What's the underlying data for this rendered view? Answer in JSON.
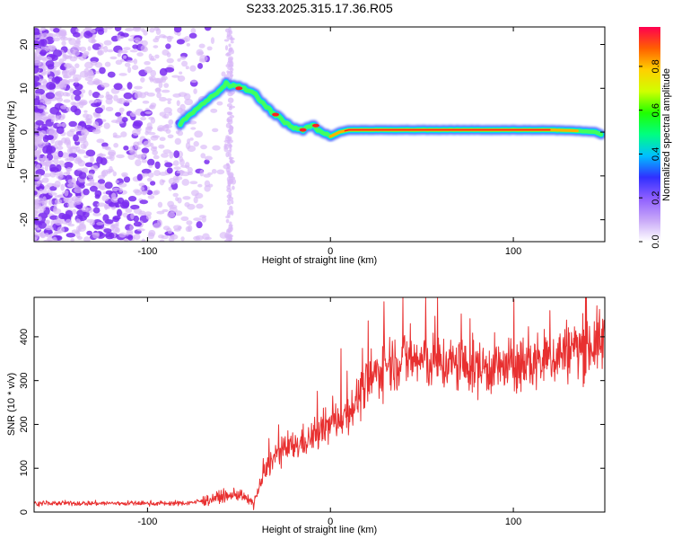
{
  "title": "S233.2025.315.17.36.R05",
  "colors": {
    "snr_line": "#e83030",
    "ridge_core": "#ff2020",
    "ridge_outer": "#4060ff",
    "noise_dark": "#7a2cf0",
    "noise_light": "#d8b8f8"
  },
  "colorbar": {
    "label": "Normalized spectral amplitude",
    "ticks": [
      {
        "value": 0.0,
        "label": "0.0"
      },
      {
        "value": 0.2,
        "label": "0.2"
      },
      {
        "value": 0.4,
        "label": "0.4"
      },
      {
        "value": 0.6,
        "label": "0.6"
      },
      {
        "value": 0.8,
        "label": "0.8"
      }
    ],
    "stops": [
      "#ffffff",
      "#c8a8f8",
      "#9060ff",
      "#3030ff",
      "#00c0ff",
      "#00ff80",
      "#20ff00",
      "#d0ff00",
      "#ffd000",
      "#ff6000",
      "#ff0050"
    ]
  },
  "chart_data": [
    {
      "type": "heatmap",
      "xlabel": "Height of straight line (km)",
      "ylabel": "Frequency (Hz)",
      "xlim": [
        -162,
        150
      ],
      "ylim": [
        -25,
        24
      ],
      "x_ticks": [
        {
          "value": -100,
          "label": "-100"
        },
        {
          "value": 0,
          "label": "0"
        },
        {
          "value": 100,
          "label": "100"
        }
      ],
      "y_ticks": [
        {
          "value": -20,
          "label": "-20"
        },
        {
          "value": -10,
          "label": "-10"
        },
        {
          "value": 0,
          "label": "0"
        },
        {
          "value": 10,
          "label": "10"
        },
        {
          "value": 20,
          "label": "20"
        }
      ],
      "ridge": {
        "x": [
          -82,
          -75,
          -68,
          -62,
          -57,
          -53,
          -47,
          -42,
          -38,
          -33,
          -28,
          -24,
          -20,
          -15,
          -10,
          -5,
          0,
          5,
          10,
          20,
          40,
          60,
          80,
          100,
          120,
          135,
          145,
          148
        ],
        "y": [
          2,
          4.5,
          7,
          9,
          11,
          10.5,
          10,
          9,
          7,
          5,
          3.5,
          2,
          1,
          0.5,
          1.5,
          0,
          -1,
          0,
          0.5,
          0.5,
          0.5,
          0.5,
          0.5,
          0.5,
          0.5,
          0.3,
          0,
          -0.5
        ]
      }
    },
    {
      "type": "line",
      "xlabel": "Height of straight line (km)",
      "ylabel": "SNR (10 * v/v)",
      "xlim": [
        -162,
        150
      ],
      "ylim": [
        0,
        490
      ],
      "x_ticks": [
        {
          "value": -100,
          "label": "-100"
        },
        {
          "value": 0,
          "label": "0"
        },
        {
          "value": 100,
          "label": "100"
        }
      ],
      "y_ticks": [
        {
          "value": 0,
          "label": "0"
        },
        {
          "value": 100,
          "label": "100"
        },
        {
          "value": 200,
          "label": "200"
        },
        {
          "value": 300,
          "label": "300"
        },
        {
          "value": 400,
          "label": "400"
        }
      ],
      "trend": {
        "x": [
          -162,
          -140,
          -120,
          -100,
          -80,
          -70,
          -60,
          -50,
          -42,
          -35,
          -30,
          -20,
          -10,
          0,
          10,
          20,
          30,
          40,
          60,
          80,
          100,
          110,
          120,
          130,
          140,
          150
        ],
        "y": [
          20,
          20,
          20,
          20,
          20,
          25,
          35,
          40,
          20,
          100,
          130,
          150,
          170,
          200,
          230,
          290,
          340,
          350,
          340,
          330,
          330,
          340,
          350,
          370,
          380,
          390
        ]
      }
    }
  ]
}
